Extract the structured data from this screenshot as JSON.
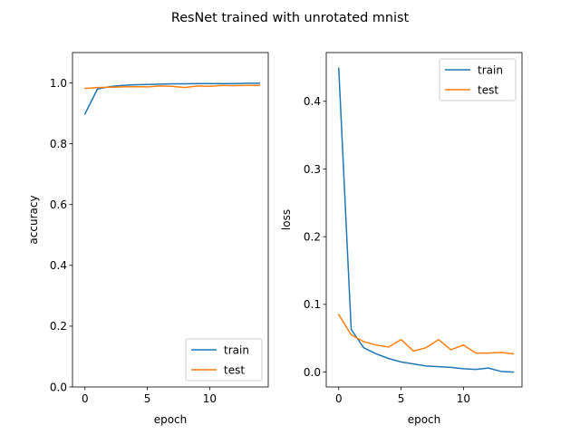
{
  "suptitle": "ResNet trained with unrotated mnist",
  "colors": {
    "train": "#1f77b4",
    "test": "#ff7f0e"
  },
  "chart_data": [
    {
      "type": "line",
      "xlabel": "epoch",
      "ylabel": "accuracy",
      "xlim": [
        -1,
        14.7
      ],
      "ylim": [
        0,
        1.1
      ],
      "xticks": [
        0,
        5,
        10
      ],
      "yticks": [
        0.0,
        0.2,
        0.4,
        0.6,
        0.8,
        1.0
      ],
      "ytick_labels": [
        "0.0",
        "0.2",
        "0.4",
        "0.6",
        "0.8",
        "1.0"
      ],
      "grid": false,
      "legend_position": "lower right",
      "x": [
        0,
        1,
        2,
        3,
        4,
        5,
        6,
        7,
        8,
        9,
        10,
        11,
        12,
        13,
        14
      ],
      "series": [
        {
          "name": "train",
          "values": [
            0.898,
            0.98,
            0.988,
            0.992,
            0.994,
            0.995,
            0.996,
            0.997,
            0.997,
            0.998,
            0.998,
            0.998,
            0.998,
            0.999,
            0.999
          ]
        },
        {
          "name": "test",
          "values": [
            0.982,
            0.985,
            0.986,
            0.987,
            0.988,
            0.987,
            0.99,
            0.989,
            0.985,
            0.99,
            0.989,
            0.992,
            0.991,
            0.992,
            0.992
          ]
        }
      ]
    },
    {
      "type": "line",
      "xlabel": "epoch",
      "ylabel": "loss",
      "xlim": [
        -1,
        14.7
      ],
      "ylim": [
        -0.022,
        0.472
      ],
      "xticks": [
        0,
        5,
        10
      ],
      "yticks": [
        0.0,
        0.1,
        0.2,
        0.3,
        0.4
      ],
      "ytick_labels": [
        "0.0",
        "0.1",
        "0.2",
        "0.3",
        "0.4"
      ],
      "grid": false,
      "legend_position": "upper right",
      "x": [
        0,
        1,
        2,
        3,
        4,
        5,
        6,
        7,
        8,
        9,
        10,
        11,
        12,
        13,
        14
      ],
      "series": [
        {
          "name": "train",
          "values": [
            0.449,
            0.063,
            0.036,
            0.027,
            0.02,
            0.015,
            0.012,
            0.009,
            0.008,
            0.007,
            0.005,
            0.004,
            0.006,
            0.001,
            0.0
          ]
        },
        {
          "name": "test",
          "values": [
            0.085,
            0.055,
            0.045,
            0.04,
            0.037,
            0.048,
            0.031,
            0.036,
            0.048,
            0.033,
            0.04,
            0.028,
            0.028,
            0.029,
            0.027
          ]
        }
      ]
    }
  ]
}
